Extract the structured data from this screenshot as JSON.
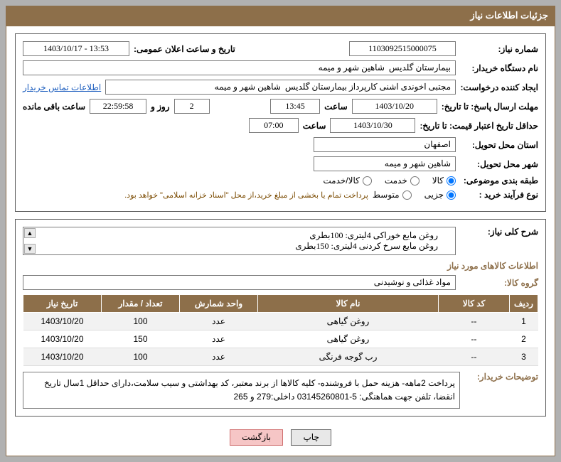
{
  "header": {
    "title": "جزئیات اطلاعات نیاز"
  },
  "fields": {
    "need_no_label": "شماره نیاز:",
    "need_no": "1103092515000075",
    "announce_label": "تاریخ و ساعت اعلان عمومی:",
    "announce": "1403/10/17 - 13:53",
    "buyer_org_label": "نام دستگاه خریدار:",
    "buyer_org": "بیمارستان گلدیس  شاهین شهر و میمه",
    "requester_label": "ایجاد کننده درخواست:",
    "requester": "مجتبی اخوندی اشنی کارپرداز بیمارستان گلدیس  شاهین شهر و میمه",
    "contact_link": "اطلاعات تماس خریدار",
    "deadline_label": "مهلت ارسال پاسخ: تا تاریخ:",
    "deadline_date": "1403/10/20",
    "time_label": "ساعت",
    "deadline_time": "13:45",
    "remain_days": "2",
    "remain_days_label": "روز و",
    "remain_time": "22:59:58",
    "remain_suffix": "ساعت باقی مانده",
    "validity_label": "حداقل تاریخ اعتبار قیمت: تا تاریخ:",
    "validity_date": "1403/10/30",
    "validity_time": "07:00",
    "province_label": "استان محل تحویل:",
    "province": "اصفهان",
    "city_label": "شهر محل تحویل:",
    "city": "شاهین شهر و میمه",
    "class_label": "طبقه بندی موضوعی:",
    "class_opts": {
      "a": "کالا",
      "b": "خدمت",
      "c": "کالا/خدمت"
    },
    "proc_label": "نوع فرآیند خرید :",
    "proc_opts": {
      "a": "جزیی",
      "b": "متوسط"
    },
    "proc_note": "پرداخت تمام یا بخشی از مبلغ خرید،از محل \"اسناد خزانه اسلامی\" خواهد بود.",
    "summary_label": "شرح کلی نیاز:",
    "summary": "روغن مایع خوراکی 4لیتری: 100بطری\nروغن مایع سرخ کردنی 4لیتری: 150بطری",
    "items_title": "اطلاعات کالاهای مورد نیاز",
    "group_label": "گروه کالا:",
    "group": "مواد غذائی و نوشیدنی",
    "buyer_notes_label": "توضیحات خریدار:",
    "buyer_notes": "پرداخت 2ماهه- هزینه حمل با فروشنده- کلیه کالاها از برند معتبر، کد بهداشتی و سیب سلامت،دارای حداقل 1سال تاریخ انقضا، تلفن جهت هماهنگی: 5-03145260801 داخلی:279 و 265"
  },
  "table": {
    "cols": {
      "row": "ردیف",
      "code": "کد کالا",
      "name": "نام کالا",
      "unit": "واحد شمارش",
      "qty": "تعداد / مقدار",
      "date": "تاریخ نیاز"
    },
    "rows": [
      {
        "row": "1",
        "code": "--",
        "name": "روغن گیاهی",
        "unit": "عدد",
        "qty": "100",
        "date": "1403/10/20"
      },
      {
        "row": "2",
        "code": "--",
        "name": "روغن گیاهی",
        "unit": "عدد",
        "qty": "150",
        "date": "1403/10/20"
      },
      {
        "row": "3",
        "code": "--",
        "name": "رب گوجه فرنگی",
        "unit": "عدد",
        "qty": "100",
        "date": "1403/10/20"
      }
    ]
  },
  "buttons": {
    "print": "چاپ",
    "back": "بازگشت"
  },
  "watermark": "AriaTender.net",
  "col_widths": {
    "row": "40px",
    "code": "100px",
    "name": "auto",
    "unit": "110px",
    "qty": "110px",
    "date": "110px"
  }
}
